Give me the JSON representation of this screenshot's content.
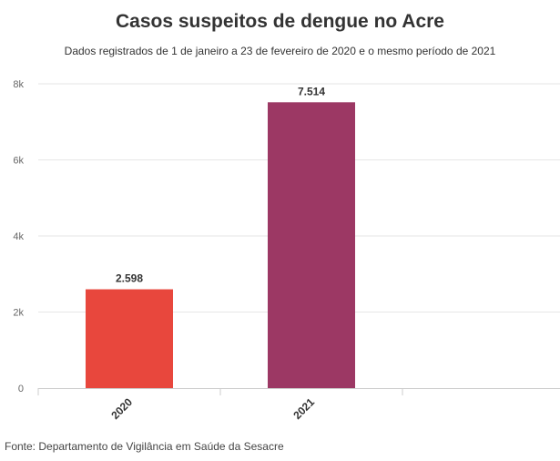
{
  "title": "Casos suspeitos de dengue no Acre",
  "subtitle": "Dados registrados de 1 de janeiro a 23 de fevereiro de 2020 e o mesmo período de 2021",
  "source": "Fonte: Departamento de Vigilância em Saúde da Sesacre",
  "chart_data": {
    "type": "bar",
    "categories": [
      "2020",
      "2021"
    ],
    "values": [
      2598,
      7514
    ],
    "value_labels": [
      "2.598",
      "7.514"
    ],
    "colors": [
      "#e8473d",
      "#9c3864"
    ],
    "ylim": [
      0,
      8000
    ],
    "yticks": [
      0,
      2000,
      4000,
      6000,
      8000
    ],
    "ytick_labels": [
      "0",
      "2k",
      "4k",
      "6k",
      "8k"
    ],
    "grid": true,
    "xlabel": "",
    "ylabel": ""
  }
}
